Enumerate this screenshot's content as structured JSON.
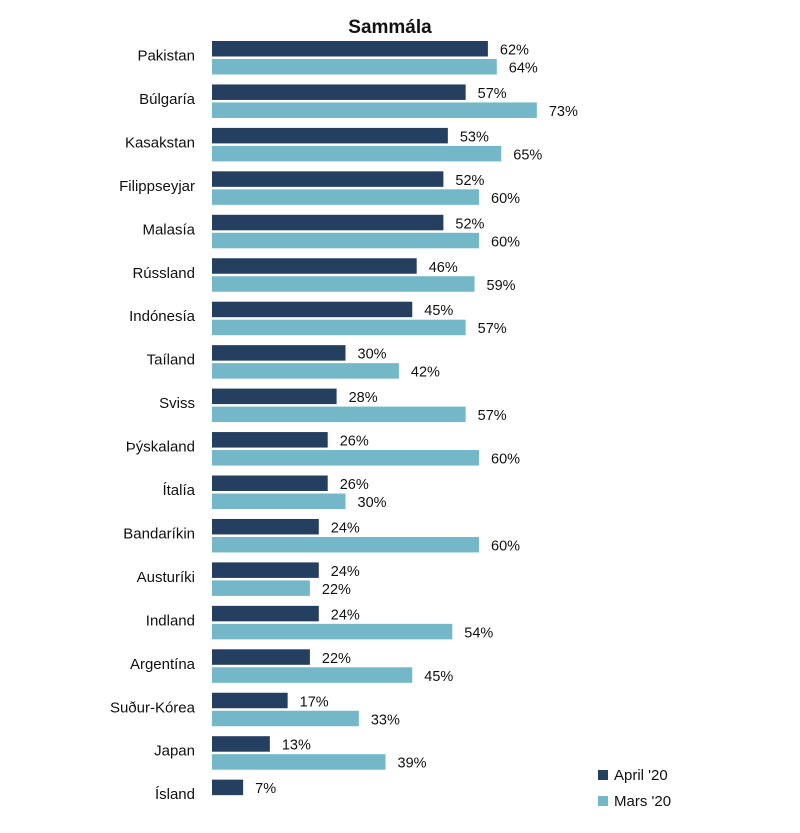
{
  "chart_data": {
    "type": "bar",
    "orientation": "horizontal",
    "title": "Sammála",
    "xlabel": "",
    "ylabel": "",
    "xlim": [
      0,
      100
    ],
    "value_suffix": "%",
    "grid": false,
    "legend_position": "bottom-right",
    "categories": [
      "Pakistan",
      "Búlgaría",
      "Kasakstan",
      "Filippseyjar",
      "Malasía",
      "Rússland",
      "Indónesía",
      "Taíland",
      "Sviss",
      "Þýskaland",
      "Ítalía",
      "Bandaríkin",
      "Austuríki",
      "Indland",
      "Argentína",
      "Suður-Kórea",
      "Japan",
      "Ísland"
    ],
    "series": [
      {
        "name": "April '20",
        "color": "#243f60",
        "values": [
          62,
          57,
          53,
          52,
          52,
          46,
          45,
          30,
          28,
          26,
          26,
          24,
          24,
          24,
          22,
          17,
          13,
          7
        ]
      },
      {
        "name": "Mars '20",
        "color": "#73b7c9",
        "values": [
          64,
          73,
          65,
          60,
          60,
          59,
          57,
          42,
          57,
          60,
          30,
          60,
          22,
          54,
          45,
          33,
          39,
          null
        ]
      }
    ]
  }
}
